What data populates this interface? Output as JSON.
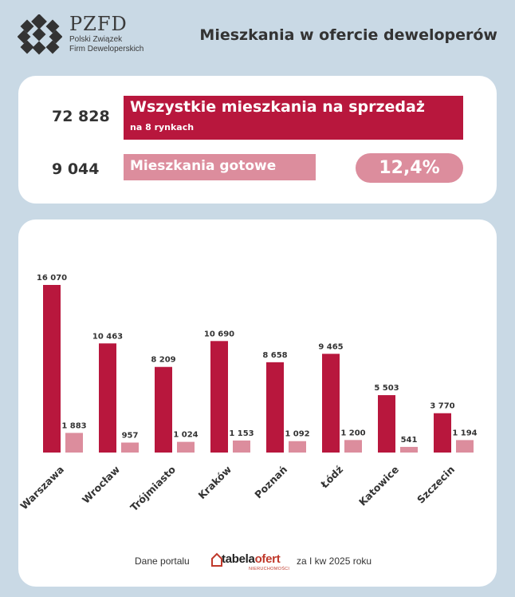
{
  "header": {
    "brand_name": "PZFD",
    "brand_line1": "Polski Związek",
    "brand_line2": "Firm Deweloperskich",
    "title": "Mieszkania w ofercie deweloperów"
  },
  "summary": {
    "total_value": "72 828",
    "total_label": "Wszystkie mieszkania na sprzedaż",
    "total_sublabel": "na 8 rynkach",
    "ready_value": "9 044",
    "ready_label": "Mieszkania gotowe",
    "ready_share": "12,4%"
  },
  "colors": {
    "total": "#b8173d",
    "ready": "#dc8d9d",
    "background": "#c9d9e5"
  },
  "chart_data": {
    "type": "bar",
    "categories": [
      "Warszawa",
      "Wrocław",
      "Trójmiasto",
      "Kraków",
      "Poznań",
      "Łódź",
      "Katowice",
      "Szczecin"
    ],
    "series": [
      {
        "values": [
          16070,
          10463,
          8209,
          10690,
          8658,
          9465,
          5503,
          3770
        ],
        "labels": [
          "16 070",
          "10 463",
          "8 209",
          "10 690",
          "8 658",
          "9 465",
          "5 503",
          "3 770"
        ]
      },
      {
        "values": [
          1883,
          957,
          1024,
          1153,
          1092,
          1200,
          541,
          1194
        ],
        "labels": [
          "1 883",
          "957",
          "1 024",
          "1 153",
          "1 092",
          "1 200",
          "541",
          "1 194"
        ]
      }
    ],
    "ylim": [
      0,
      16070
    ],
    "grid": false,
    "legend": "none"
  },
  "footer": {
    "left_text": "Dane portalu",
    "logo_text_main": "tabela",
    "logo_text_accent": "ofert",
    "logo_sub": "NIERUCHOMOŚCI",
    "right_text": "za I kw 2025 roku"
  }
}
